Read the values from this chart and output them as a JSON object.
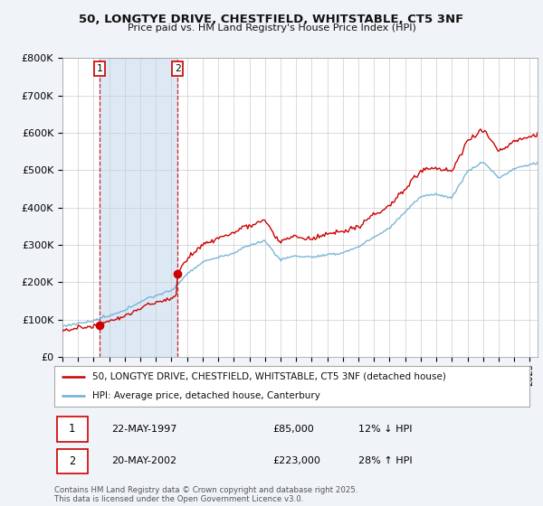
{
  "title1": "50, LONGTYE DRIVE, CHESTFIELD, WHITSTABLE, CT5 3NF",
  "title2": "Price paid vs. HM Land Registry's House Price Index (HPI)",
  "ylim": [
    0,
    800000
  ],
  "yticks": [
    0,
    100000,
    200000,
    300000,
    400000,
    500000,
    600000,
    700000,
    800000
  ],
  "ytick_labels": [
    "£0",
    "£100K",
    "£200K",
    "£300K",
    "£400K",
    "£500K",
    "£600K",
    "£700K",
    "£800K"
  ],
  "sale1_date": 1997.39,
  "sale1_price": 85000,
  "sale2_date": 2002.38,
  "sale2_price": 223000,
  "hpi_line_color": "#6baed6",
  "price_line_color": "#cc0000",
  "sale_dot_color": "#cc0000",
  "vline_color": "#cc0000",
  "shade_color": "#c6dbef",
  "legend_label1": "50, LONGTYE DRIVE, CHESTFIELD, WHITSTABLE, CT5 3NF (detached house)",
  "legend_label2": "HPI: Average price, detached house, Canterbury",
  "table_row1": [
    "1",
    "22-MAY-1997",
    "£85,000",
    "12% ↓ HPI"
  ],
  "table_row2": [
    "2",
    "20-MAY-2002",
    "£223,000",
    "28% ↑ HPI"
  ],
  "footnote": "Contains HM Land Registry data © Crown copyright and database right 2025.\nThis data is licensed under the Open Government Licence v3.0.",
  "bg_color": "#f0f4f8",
  "plot_bg_color": "#ffffff",
  "grid_color": "#cccccc",
  "xlim_start": 1995,
  "xlim_end": 2025.5
}
